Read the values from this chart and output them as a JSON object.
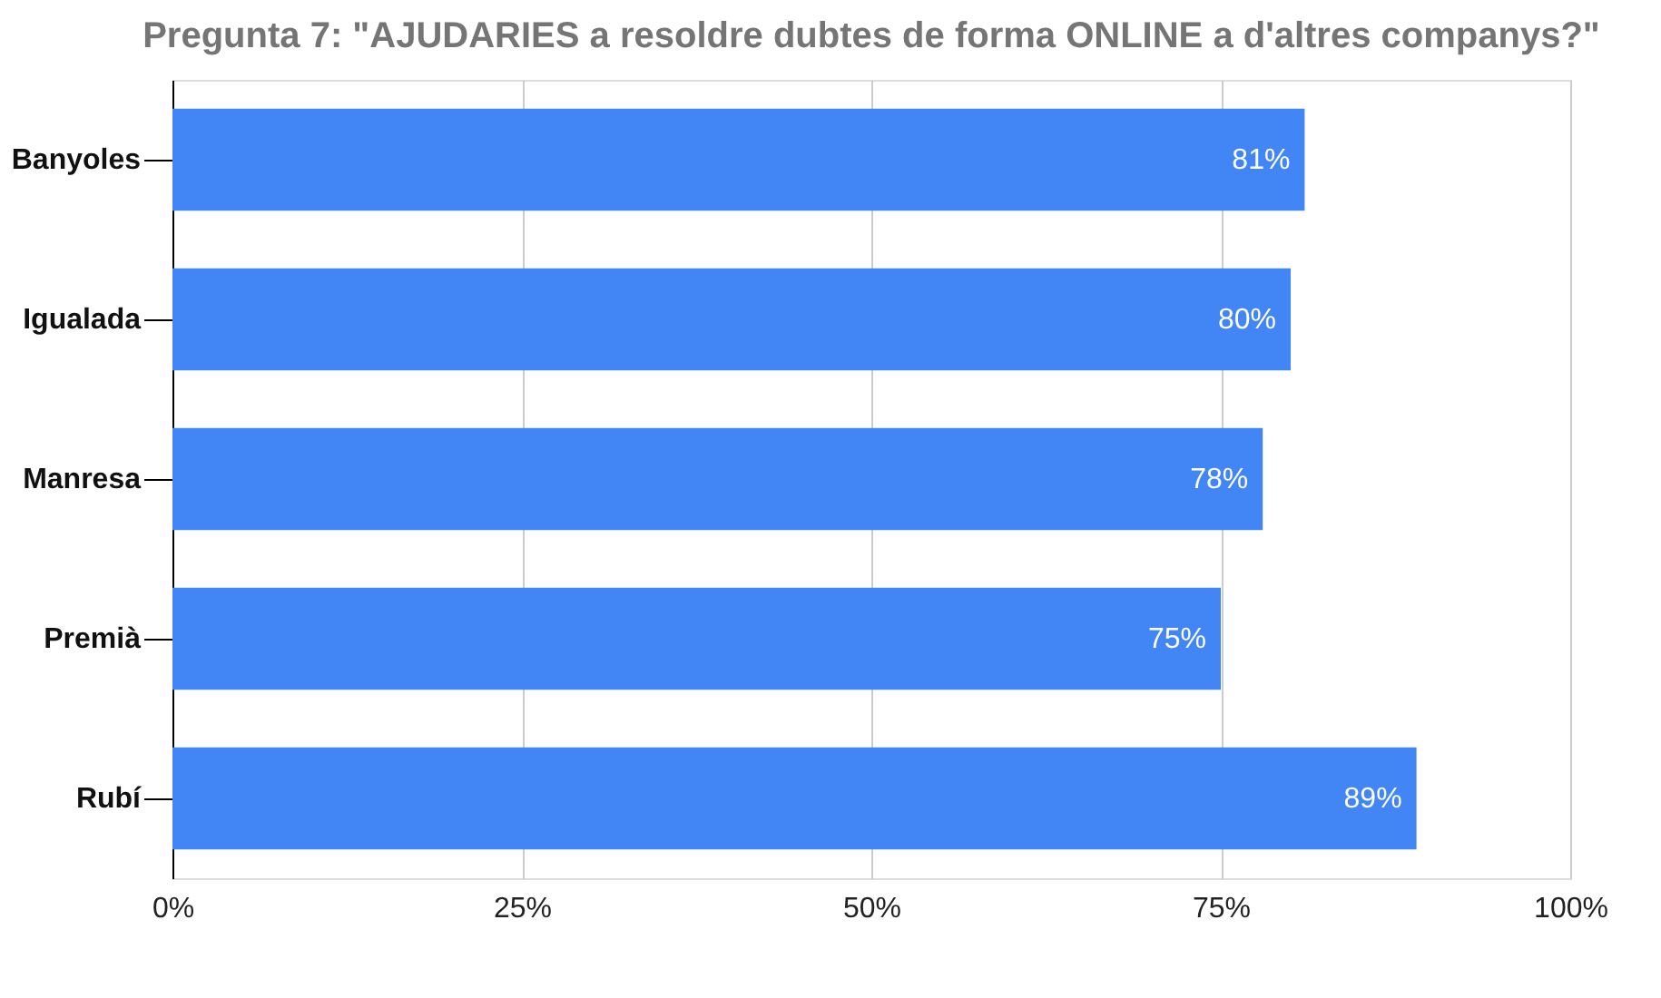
{
  "chart_data": {
    "type": "bar",
    "orientation": "horizontal",
    "title": "Pregunta 7: \"AJUDARIES a resoldre dubtes de forma ONLINE a d'altres companys?\"",
    "categories": [
      "Banyoles",
      "Igualada",
      "Manresa",
      "Premià",
      "Rubí"
    ],
    "values": [
      81,
      80,
      78,
      75,
      89
    ],
    "value_labels": [
      "81%",
      "80%",
      "78%",
      "75%",
      "89%"
    ],
    "color": "#4285f4",
    "xlim": [
      0,
      100
    ],
    "xticks": [
      {
        "value": 0,
        "label": "0%"
      },
      {
        "value": 25,
        "label": "25%"
      },
      {
        "value": 50,
        "label": "50%"
      },
      {
        "value": 75,
        "label": "75%"
      },
      {
        "value": 100,
        "label": "100%"
      }
    ],
    "grid": "x"
  }
}
